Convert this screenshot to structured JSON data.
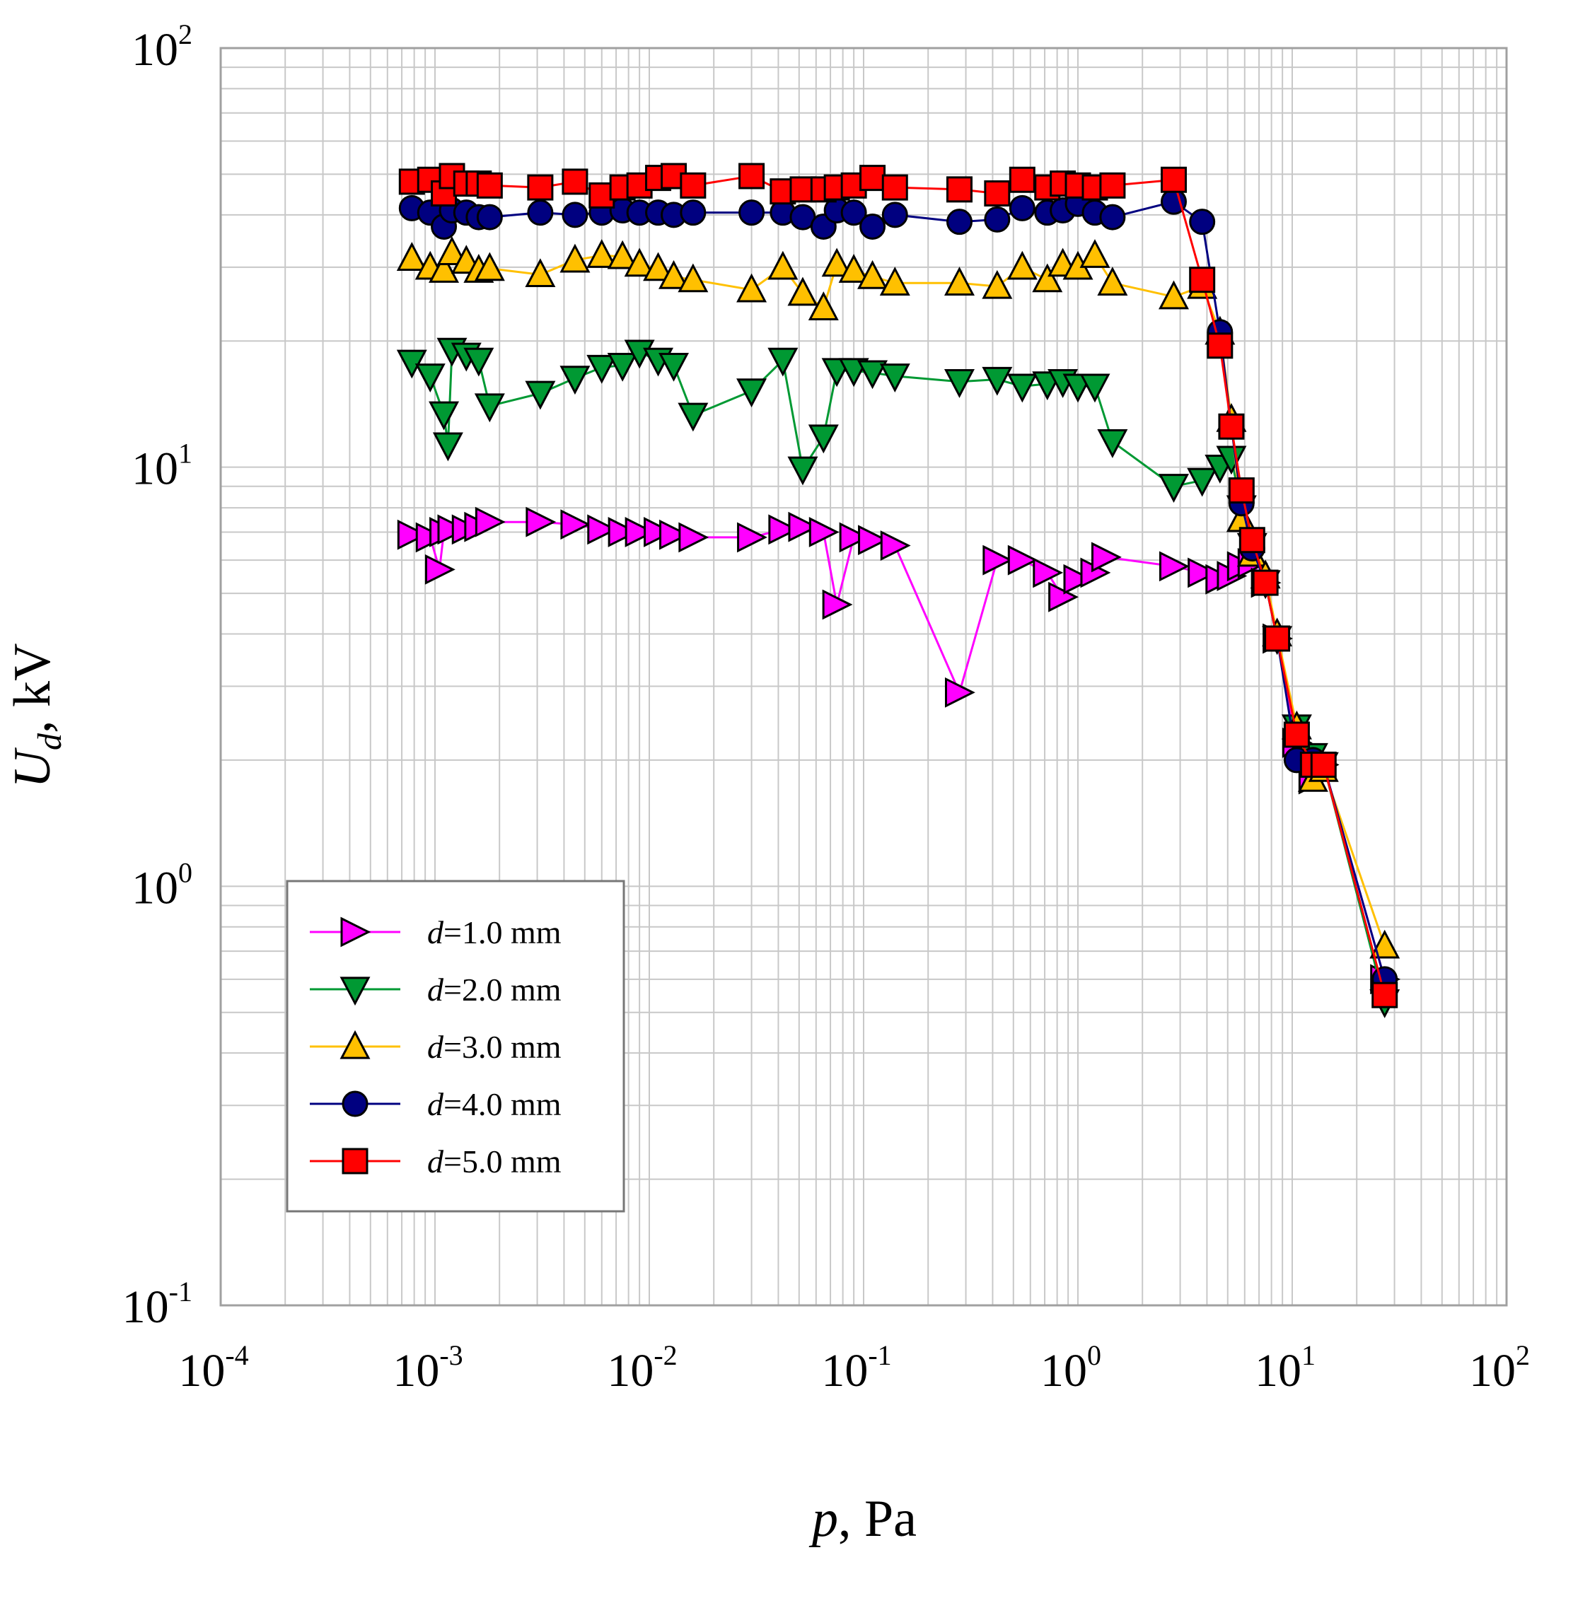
{
  "chart_data": {
    "type": "line",
    "scale": {
      "x": "log",
      "y": "log"
    },
    "xlim": [
      0.0001,
      100
    ],
    "ylim": [
      0.1,
      100
    ],
    "grid": true,
    "legend_position": "bottom-left",
    "x_ticks": [
      {
        "value": 0.0001,
        "base": "10",
        "exp": "-4"
      },
      {
        "value": 0.001,
        "base": "10",
        "exp": "-3"
      },
      {
        "value": 0.01,
        "base": "10",
        "exp": "-2"
      },
      {
        "value": 0.1,
        "base": "10",
        "exp": "-1"
      },
      {
        "value": 1,
        "base": "10",
        "exp": "0"
      },
      {
        "value": 10,
        "base": "10",
        "exp": "1"
      },
      {
        "value": 100,
        "base": "10",
        "exp": "2"
      }
    ],
    "y_ticks": [
      {
        "value": 0.1,
        "base": "10",
        "exp": "-1"
      },
      {
        "value": 1,
        "base": "10",
        "exp": "0"
      },
      {
        "value": 10,
        "base": "10",
        "exp": "1"
      },
      {
        "value": 100,
        "base": "10",
        "exp": "2"
      }
    ],
    "xlabel": {
      "var": "p",
      "unit": ", Pa"
    },
    "ylabel": {
      "var": "U",
      "sub": "d",
      "unit": ", kV"
    },
    "series": [
      {
        "name": "d=1.0 mm",
        "var": "d",
        "rest": "=1.0 mm",
        "color": "#ff00ff",
        "marker": "triangle-right",
        "points": [
          [
            0.00078,
            6.9
          ],
          [
            0.00095,
            6.8
          ],
          [
            0.00105,
            5.7
          ],
          [
            0.0011,
            7.0
          ],
          [
            0.0012,
            7.1
          ],
          [
            0.0014,
            7.1
          ],
          [
            0.0016,
            7.2
          ],
          [
            0.0018,
            7.4
          ],
          [
            0.0031,
            7.4
          ],
          [
            0.0045,
            7.3
          ],
          [
            0.006,
            7.1
          ],
          [
            0.0075,
            7.0
          ],
          [
            0.009,
            7.0
          ],
          [
            0.011,
            7.0
          ],
          [
            0.013,
            6.9
          ],
          [
            0.016,
            6.8
          ],
          [
            0.03,
            6.8
          ],
          [
            0.042,
            7.1
          ],
          [
            0.052,
            7.2
          ],
          [
            0.065,
            7.0
          ],
          [
            0.075,
            4.7
          ],
          [
            0.09,
            6.8
          ],
          [
            0.11,
            6.7
          ],
          [
            0.14,
            6.5
          ],
          [
            0.28,
            2.9
          ],
          [
            0.42,
            6.0
          ],
          [
            0.55,
            6.0
          ],
          [
            0.72,
            5.6
          ],
          [
            0.85,
            4.9
          ],
          [
            1.0,
            5.4
          ],
          [
            1.2,
            5.6
          ],
          [
            1.35,
            6.1
          ],
          [
            2.8,
            5.8
          ],
          [
            3.8,
            5.6
          ],
          [
            4.6,
            5.4
          ],
          [
            5.2,
            5.5
          ],
          [
            5.8,
            5.8
          ],
          [
            6.5,
            5.9
          ],
          [
            7.5,
            5.3
          ],
          [
            8.5,
            3.9
          ],
          [
            10.5,
            2.2
          ],
          [
            12.5,
            1.8
          ],
          [
            14,
            1.95
          ],
          [
            27,
            0.6
          ]
        ]
      },
      {
        "name": "d=2.0 mm",
        "var": "d",
        "rest": "=2.0 mm",
        "color": "#009933",
        "marker": "triangle-down",
        "points": [
          [
            0.00078,
            17.8
          ],
          [
            0.00095,
            16.5
          ],
          [
            0.0011,
            13.4
          ],
          [
            0.00115,
            11.3
          ],
          [
            0.0012,
            19.0
          ],
          [
            0.0014,
            18.5
          ],
          [
            0.0016,
            18.0
          ],
          [
            0.0018,
            14.0
          ],
          [
            0.0031,
            15.0
          ],
          [
            0.0045,
            16.3
          ],
          [
            0.006,
            17.3
          ],
          [
            0.0075,
            17.5
          ],
          [
            0.009,
            18.8
          ],
          [
            0.011,
            18.0
          ],
          [
            0.013,
            17.5
          ],
          [
            0.016,
            13.3
          ],
          [
            0.03,
            15.2
          ],
          [
            0.042,
            18.0
          ],
          [
            0.052,
            9.9
          ],
          [
            0.065,
            11.8
          ],
          [
            0.075,
            17.0
          ],
          [
            0.09,
            17.0
          ],
          [
            0.11,
            16.8
          ],
          [
            0.14,
            16.5
          ],
          [
            0.28,
            16.0
          ],
          [
            0.42,
            16.2
          ],
          [
            0.55,
            15.6
          ],
          [
            0.72,
            15.8
          ],
          [
            0.85,
            16.0
          ],
          [
            1.0,
            15.6
          ],
          [
            1.2,
            15.6
          ],
          [
            1.45,
            11.5
          ],
          [
            2.8,
            9.0
          ],
          [
            3.8,
            9.3
          ],
          [
            4.6,
            10.0
          ],
          [
            5.2,
            10.5
          ],
          [
            5.8,
            8.0
          ],
          [
            6.5,
            6.5
          ],
          [
            7.5,
            5.3
          ],
          [
            8.5,
            3.9
          ],
          [
            10.5,
            2.4
          ],
          [
            12.5,
            2.05
          ],
          [
            14,
            1.95
          ],
          [
            27,
            0.53
          ]
        ]
      },
      {
        "name": "d=3.0 mm",
        "var": "d",
        "rest": "=3.0 mm",
        "color": "#ffc000",
        "marker": "triangle-up",
        "points": [
          [
            0.00078,
            31.5
          ],
          [
            0.00095,
            30.0
          ],
          [
            0.0011,
            29.5
          ],
          [
            0.0012,
            32.5
          ],
          [
            0.0014,
            31.0
          ],
          [
            0.0016,
            29.5
          ],
          [
            0.0018,
            29.8
          ],
          [
            0.0031,
            28.8
          ],
          [
            0.0045,
            31.2
          ],
          [
            0.006,
            32.0
          ],
          [
            0.0075,
            31.8
          ],
          [
            0.009,
            30.5
          ],
          [
            0.011,
            29.8
          ],
          [
            0.013,
            28.5
          ],
          [
            0.016,
            28.0
          ],
          [
            0.03,
            26.5
          ],
          [
            0.042,
            30.0
          ],
          [
            0.052,
            26.0
          ],
          [
            0.065,
            24.0
          ],
          [
            0.075,
            30.5
          ],
          [
            0.09,
            29.5
          ],
          [
            0.11,
            28.5
          ],
          [
            0.14,
            27.5
          ],
          [
            0.28,
            27.5
          ],
          [
            0.42,
            27.0
          ],
          [
            0.55,
            30.0
          ],
          [
            0.72,
            28.0
          ],
          [
            0.85,
            30.5
          ],
          [
            1.0,
            30.0
          ],
          [
            1.2,
            32.0
          ],
          [
            1.45,
            27.5
          ],
          [
            2.8,
            25.5
          ],
          [
            3.8,
            27.0
          ],
          [
            4.6,
            21.0
          ],
          [
            5.2,
            13.0
          ],
          [
            5.8,
            7.5
          ],
          [
            6.5,
            6.2
          ],
          [
            7.5,
            5.5
          ],
          [
            8.5,
            4.0
          ],
          [
            10.5,
            2.4
          ],
          [
            12.5,
            1.8
          ],
          [
            14,
            1.9
          ],
          [
            27,
            0.72
          ]
        ]
      },
      {
        "name": "d=4.0 mm",
        "var": "d",
        "rest": "=4.0 mm",
        "color": "#000080",
        "marker": "circle",
        "points": [
          [
            0.00078,
            41.5
          ],
          [
            0.00095,
            40.5
          ],
          [
            0.0011,
            37.5
          ],
          [
            0.0012,
            41.0
          ],
          [
            0.0014,
            40.5
          ],
          [
            0.0016,
            39.5
          ],
          [
            0.0018,
            39.5
          ],
          [
            0.0031,
            40.5
          ],
          [
            0.0045,
            40.0
          ],
          [
            0.006,
            40.5
          ],
          [
            0.0075,
            41.0
          ],
          [
            0.009,
            40.5
          ],
          [
            0.011,
            40.5
          ],
          [
            0.013,
            40.0
          ],
          [
            0.016,
            40.5
          ],
          [
            0.03,
            40.5
          ],
          [
            0.042,
            40.5
          ],
          [
            0.052,
            39.5
          ],
          [
            0.065,
            37.5
          ],
          [
            0.075,
            41.0
          ],
          [
            0.09,
            40.5
          ],
          [
            0.11,
            37.5
          ],
          [
            0.14,
            40.0
          ],
          [
            0.28,
            38.5
          ],
          [
            0.42,
            39.0
          ],
          [
            0.55,
            41.5
          ],
          [
            0.72,
            40.5
          ],
          [
            0.85,
            41.0
          ],
          [
            1.0,
            42.5
          ],
          [
            1.2,
            40.5
          ],
          [
            1.45,
            39.5
          ],
          [
            2.8,
            43.0
          ],
          [
            3.8,
            38.5
          ],
          [
            4.6,
            21.0
          ],
          [
            5.2,
            12.5
          ],
          [
            5.8,
            8.2
          ],
          [
            6.5,
            6.4
          ],
          [
            7.5,
            5.3
          ],
          [
            8.5,
            3.9
          ],
          [
            10.5,
            2.0
          ],
          [
            12.5,
            2.0
          ],
          [
            14,
            1.95
          ],
          [
            27,
            0.6
          ]
        ]
      },
      {
        "name": "d=5.0 mm",
        "var": "d",
        "rest": "=5.0 mm",
        "color": "#ff0000",
        "marker": "square",
        "points": [
          [
            0.00078,
            48.0
          ],
          [
            0.00095,
            48.5
          ],
          [
            0.0011,
            45.0
          ],
          [
            0.0012,
            49.5
          ],
          [
            0.0014,
            47.5
          ],
          [
            0.0016,
            47.5
          ],
          [
            0.0018,
            47.0
          ],
          [
            0.0031,
            46.5
          ],
          [
            0.0045,
            48.0
          ],
          [
            0.006,
            44.5
          ],
          [
            0.0075,
            46.5
          ],
          [
            0.009,
            47.0
          ],
          [
            0.011,
            49.0
          ],
          [
            0.013,
            49.5
          ],
          [
            0.016,
            47.0
          ],
          [
            0.03,
            49.5
          ],
          [
            0.042,
            45.5
          ],
          [
            0.052,
            46.0
          ],
          [
            0.065,
            46.0
          ],
          [
            0.075,
            46.5
          ],
          [
            0.09,
            47.0
          ],
          [
            0.11,
            49.0
          ],
          [
            0.14,
            46.5
          ],
          [
            0.28,
            46.0
          ],
          [
            0.42,
            45.0
          ],
          [
            0.55,
            48.5
          ],
          [
            0.72,
            46.5
          ],
          [
            0.85,
            47.5
          ],
          [
            1.0,
            47.0
          ],
          [
            1.2,
            46.5
          ],
          [
            1.45,
            47.0
          ],
          [
            2.8,
            48.5
          ],
          [
            3.8,
            28.0
          ],
          [
            4.6,
            19.5
          ],
          [
            5.2,
            12.5
          ],
          [
            5.8,
            8.8
          ],
          [
            6.5,
            6.7
          ],
          [
            7.5,
            5.3
          ],
          [
            8.5,
            3.9
          ],
          [
            10.5,
            2.3
          ],
          [
            12.5,
            1.95
          ],
          [
            14,
            1.95
          ],
          [
            27,
            0.55
          ]
        ]
      }
    ]
  }
}
